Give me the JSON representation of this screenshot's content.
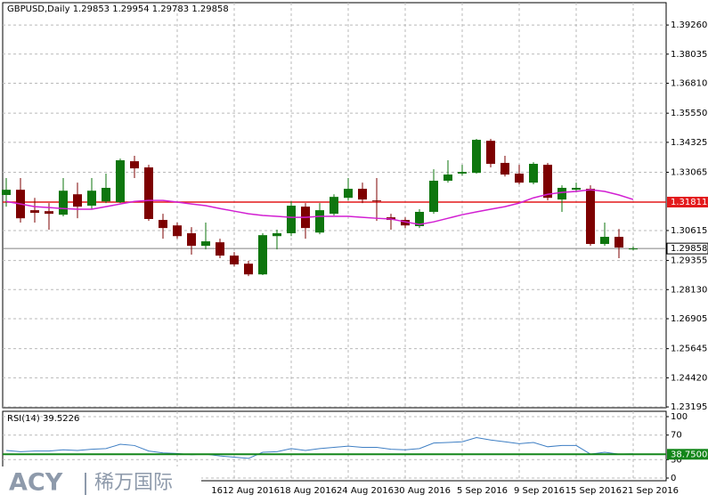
{
  "chart_data": {
    "type": "candlestick",
    "symbol": "GBPUSD,Daily",
    "categories": [
      null,
      null,
      null,
      null,
      null,
      null,
      null,
      null,
      null,
      null,
      null,
      null,
      "16",
      null,
      null,
      null,
      "12 Aug 2016",
      null,
      null,
      null,
      "18 Aug 2016",
      null,
      null,
      null,
      "24 Aug 2016",
      null,
      null,
      null,
      "30 Aug 2016",
      null,
      null,
      null,
      "5 Sep 2016",
      null,
      null,
      null,
      "9 Sep 2016",
      null,
      null,
      null,
      "15 Sep 2016",
      null,
      null,
      null,
      "21 Sep 2016"
    ],
    "open": [
      1.3211,
      1.3233,
      1.3147,
      1.3143,
      1.3128,
      1.3214,
      1.3166,
      1.3184,
      1.3181,
      1.3353,
      1.3327,
      1.3106,
      1.3083,
      1.305,
      1.2997,
      1.3012,
      1.2956,
      1.2922,
      1.2877,
      1.3038,
      1.305,
      1.3162,
      1.3053,
      1.3132,
      1.3199,
      1.3237,
      1.3188,
      1.3117,
      1.3106,
      1.308,
      1.314,
      1.3271,
      1.3301,
      1.3304,
      1.3439,
      1.3346,
      1.3301,
      1.3263,
      1.3338,
      1.3192,
      1.3233,
      1.3237,
      1.3005,
      1.3035,
      1.29853
    ],
    "high": [
      1.3282,
      1.3282,
      1.3199,
      1.3177,
      1.3282,
      1.3263,
      1.3282,
      1.3301,
      1.3364,
      1.3376,
      1.3338,
      1.3132,
      1.3095,
      1.3076,
      1.3095,
      1.3027,
      1.2971,
      1.2934,
      1.305,
      1.3065,
      1.3184,
      1.3177,
      1.3177,
      1.3214,
      1.3282,
      1.3263,
      1.3282,
      1.3132,
      1.3117,
      1.3151,
      1.3319,
      1.3357,
      1.3338,
      1.3447,
      1.3447,
      1.3376,
      1.3338,
      1.3349,
      1.3346,
      1.3252,
      1.3263,
      1.3252,
      1.3095,
      1.3068,
      1.29954
    ],
    "low": [
      1.3162,
      1.3095,
      1.3095,
      1.3065,
      1.3121,
      1.3113,
      1.3151,
      1.3177,
      1.3177,
      1.3282,
      1.3102,
      1.3027,
      1.3027,
      1.296,
      1.2982,
      1.2945,
      1.2911,
      1.287,
      1.2874,
      1.2982,
      1.3038,
      1.3027,
      1.3046,
      1.3125,
      1.3188,
      1.3177,
      1.3102,
      1.3065,
      1.3072,
      1.3072,
      1.3132,
      1.3263,
      1.3293,
      1.3301,
      1.3327,
      1.3289,
      1.3256,
      1.3256,
      1.3188,
      1.314,
      1.3222,
      1.2997,
      1.2997,
      1.2945,
      1.29783
    ],
    "close": [
      1.3233,
      1.3113,
      1.3136,
      1.3132,
      1.3229,
      1.3162,
      1.3229,
      1.3241,
      1.3357,
      1.3323,
      1.311,
      1.3072,
      1.3038,
      1.2997,
      1.3016,
      1.2956,
      1.2919,
      1.2877,
      1.3042,
      1.305,
      1.3166,
      1.3072,
      1.3147,
      1.3203,
      1.3237,
      1.3192,
      1.3186,
      1.3106,
      1.3083,
      1.314,
      1.3271,
      1.3297,
      1.3308,
      1.3443,
      1.3342,
      1.3297,
      1.3263,
      1.3342,
      1.3199,
      1.3241,
      1.3241,
      1.3005,
      1.3035,
      1.299,
      1.29858
    ],
    "up_color": "#0e760e",
    "down_color": "#7d0000",
    "overlays": [
      {
        "color": "#d21fd2",
        "values": [
          1.3184,
          1.3173,
          1.3162,
          1.3158,
          1.3154,
          1.3151,
          1.3151,
          1.3162,
          1.3173,
          1.3184,
          1.3188,
          1.3188,
          1.3181,
          1.3173,
          1.3166,
          1.3154,
          1.3143,
          1.3132,
          1.3125,
          1.3121,
          1.3117,
          1.3117,
          1.3121,
          1.3121,
          1.3121,
          1.3117,
          1.3113,
          1.311,
          1.3098,
          1.3087,
          1.3098,
          1.3113,
          1.3128,
          1.314,
          1.3151,
          1.3162,
          1.3177,
          1.3199,
          1.3214,
          1.3222,
          1.3226,
          1.3233,
          1.3226,
          1.3211,
          1.3192
        ]
      }
    ],
    "level": {
      "value": 1.31811,
      "color": "#e31a1c"
    },
    "bid_color": "#808080",
    "ylim": [
      1.2316,
      1.402
    ],
    "yticks": [
      {
        "value": 1.3926,
        "label": "1.39260"
      },
      1.38035,
      {
        "value": 1.3681,
        "label": "1.36810"
      },
      {
        "value": 1.3555,
        "label": "1.35550"
      },
      1.34325,
      1.33065,
      1.30615,
      1.29355,
      {
        "value": 1.2813,
        "label": "1.28130"
      },
      1.26905,
      1.25645,
      {
        "value": 1.2442,
        "label": "1.24420"
      },
      1.23195
    ],
    "grid": true,
    "rsi": {
      "label": "RSI(14)",
      "color": "#3f7fc4",
      "values": [
        45,
        43,
        44,
        44,
        46,
        45,
        47,
        48,
        55,
        53,
        44,
        41,
        40,
        38,
        39,
        36,
        34,
        32,
        42,
        43,
        48,
        45,
        48,
        50,
        52,
        50,
        50,
        47,
        46,
        48,
        57,
        58,
        59,
        66,
        62,
        59,
        56,
        58,
        51,
        53,
        53,
        39,
        42,
        39,
        39.5226
      ],
      "ylim": [
        0,
        100
      ],
      "yticks": [
        100,
        70,
        30,
        0
      ],
      "signal": {
        "value": 38.75,
        "label": "38.7500",
        "color": "#13861a"
      }
    },
    "watermark": {
      "brand": "ACY",
      "name": "稀万国际"
    }
  }
}
